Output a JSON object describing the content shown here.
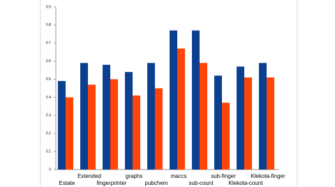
{
  "chart_data": {
    "type": "bar",
    "categories": [
      "Estate",
      "Extended",
      "fingerprinter",
      "graphs",
      "pubchem",
      "maccs",
      "sub-count",
      "sub-finger",
      "Klekota-count",
      "Klekota-finger"
    ],
    "series": [
      {
        "color": "#0b3f8f",
        "values": [
          0.49,
          0.59,
          0.58,
          0.54,
          0.59,
          0.77,
          0.77,
          0.52,
          0.57,
          0.59
        ]
      },
      {
        "color": "#ff4409",
        "values": [
          0.4,
          0.47,
          0.5,
          0.41,
          0.45,
          0.67,
          0.59,
          0.37,
          0.51,
          0.51
        ]
      }
    ],
    "ylim": [
      0,
      0.9
    ],
    "yticks": [
      0,
      0.1,
      0.2,
      0.3,
      0.4,
      0.5,
      0.6,
      0.7,
      0.8,
      0.9
    ]
  }
}
